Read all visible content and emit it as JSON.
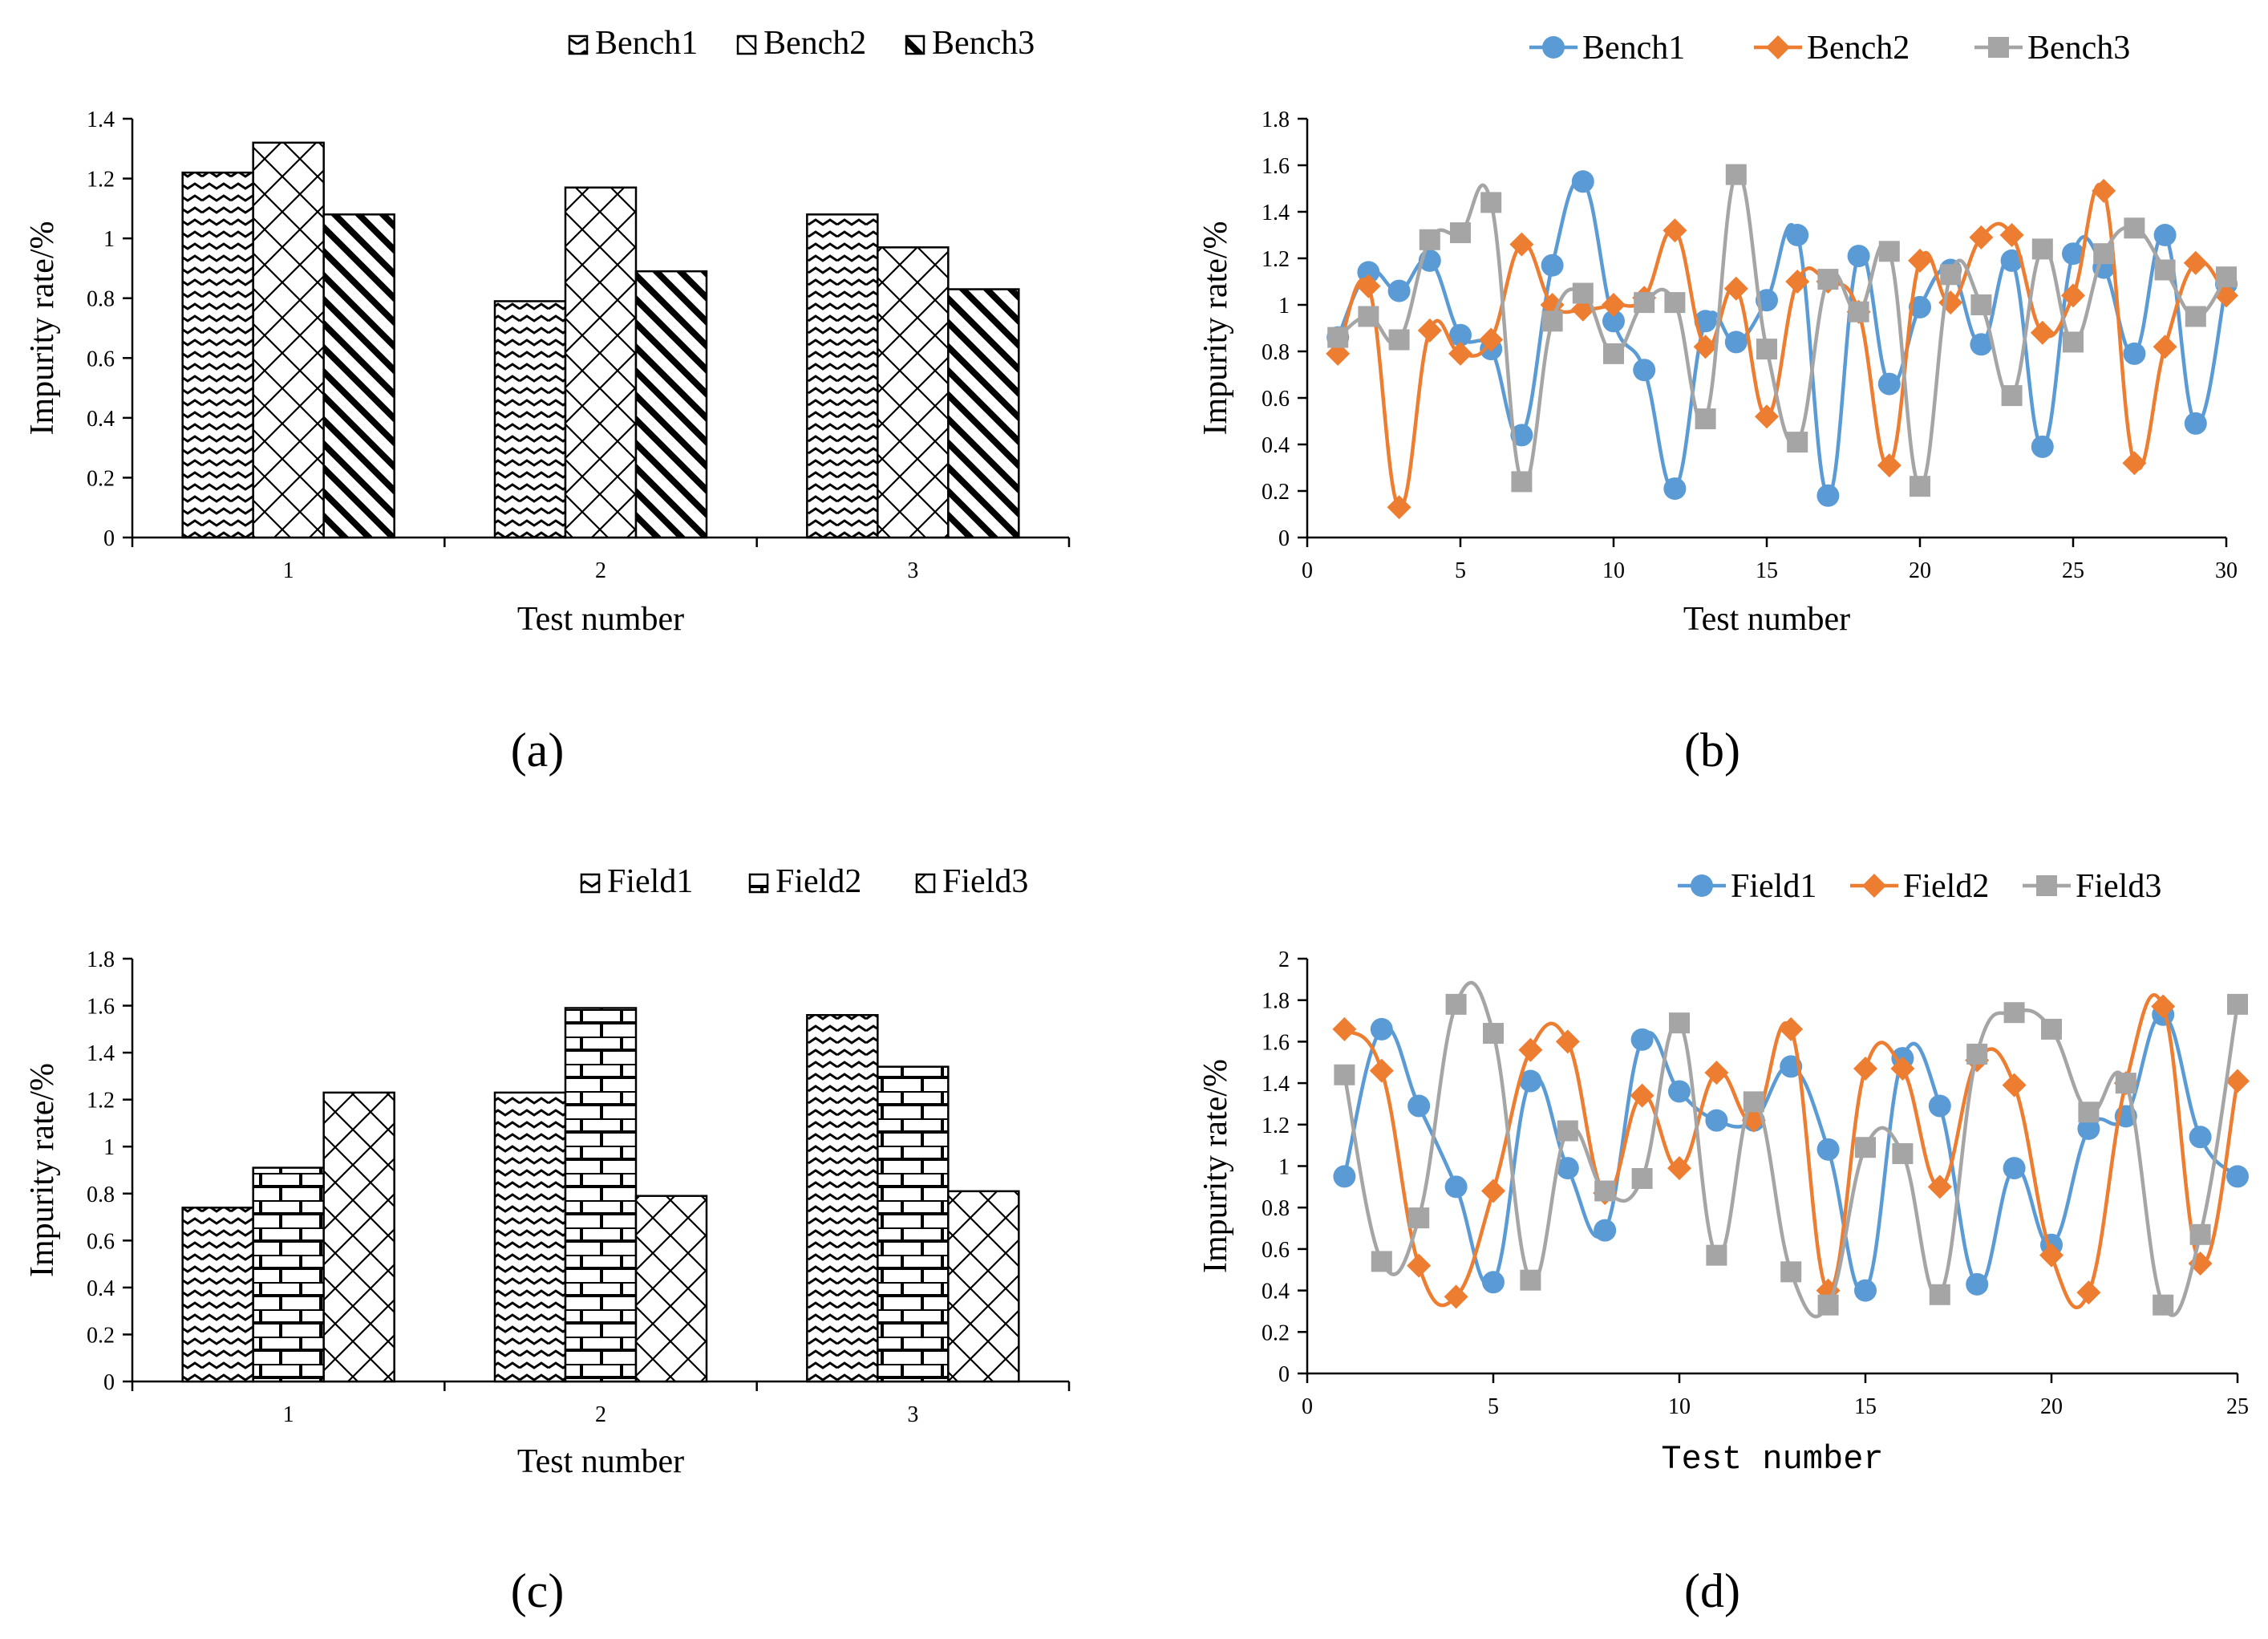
{
  "chart_data": [
    {
      "id": "a",
      "type": "bar",
      "caption": "(a)",
      "categories": [
        "1",
        "2",
        "3"
      ],
      "series": [
        {
          "name": "Bench1",
          "values": [
            1.22,
            0.79,
            1.08
          ]
        },
        {
          "name": "Bench2",
          "values": [
            1.32,
            1.17,
            0.97
          ]
        },
        {
          "name": "Bench3",
          "values": [
            1.08,
            0.89,
            0.83
          ]
        }
      ],
      "xlabel": "Test number",
      "ylabel": "Impurity rate/%",
      "ylim": [
        0,
        1.4
      ],
      "yticks": [
        "0",
        "0.2",
        "0.4",
        "0.6",
        "0.8",
        "1",
        "1.2",
        "1.4"
      ],
      "legend": "top-center",
      "grid": false
    },
    {
      "id": "b",
      "type": "line",
      "caption": "(b)",
      "x": [
        1,
        2,
        3,
        4,
        5,
        6,
        7,
        8,
        9,
        10,
        11,
        12,
        13,
        14,
        15,
        16,
        17,
        18,
        19,
        20,
        21,
        22,
        23,
        24,
        25,
        26,
        27,
        28,
        29,
        30
      ],
      "series": [
        {
          "name": "Bench1",
          "color": "#5B9BD5",
          "marker": "circle",
          "values": [
            0.86,
            1.14,
            1.06,
            1.19,
            0.87,
            0.81,
            0.44,
            1.17,
            1.53,
            0.93,
            0.72,
            0.21,
            0.93,
            0.84,
            1.02,
            1.3,
            0.18,
            1.21,
            0.66,
            0.99,
            1.15,
            0.83,
            1.19,
            0.39,
            1.22,
            1.16,
            0.79,
            1.3,
            0.49,
            1.09
          ]
        },
        {
          "name": "Bench2",
          "color": "#ED7D31",
          "marker": "diamond",
          "values": [
            0.79,
            1.08,
            0.13,
            0.89,
            0.79,
            0.85,
            1.26,
            1.0,
            0.98,
            1.0,
            1.03,
            1.32,
            0.82,
            1.07,
            0.52,
            1.1,
            1.1,
            0.97,
            0.31,
            1.19,
            1.01,
            1.29,
            1.3,
            0.88,
            1.04,
            1.49,
            0.32,
            0.82,
            1.18,
            1.04
          ]
        },
        {
          "name": "Bench3",
          "color": "#A5A5A5",
          "marker": "square",
          "values": [
            0.86,
            0.95,
            0.85,
            1.28,
            1.31,
            1.44,
            0.24,
            0.93,
            1.05,
            0.79,
            1.01,
            1.01,
            0.51,
            1.56,
            0.81,
            0.41,
            1.11,
            0.97,
            1.23,
            0.22,
            1.13,
            1.0,
            0.61,
            1.24,
            0.84,
            1.22,
            1.33,
            1.15,
            0.95,
            1.12
          ]
        }
      ],
      "xlabel": "Test number",
      "ylabel": "Impurity rate/%",
      "xlim": [
        0,
        30
      ],
      "ylim": [
        0,
        1.8
      ],
      "xticks": [
        "0",
        "5",
        "10",
        "15",
        "20",
        "25",
        "30"
      ],
      "yticks": [
        "0",
        "0.2",
        "0.4",
        "0.6",
        "0.8",
        "1",
        "1.2",
        "1.4",
        "1.6",
        "1.8"
      ],
      "legend": "top-right",
      "grid": false
    },
    {
      "id": "c",
      "type": "bar",
      "caption": "(c)",
      "categories": [
        "1",
        "2",
        "3"
      ],
      "series": [
        {
          "name": "Field1",
          "values": [
            0.74,
            1.23,
            1.56
          ]
        },
        {
          "name": "Field2",
          "values": [
            0.91,
            1.59,
            1.34
          ]
        },
        {
          "name": "Field3",
          "values": [
            1.23,
            0.79,
            0.81
          ]
        }
      ],
      "xlabel": "Test number",
      "ylabel": "Impurity rate/%",
      "ylim": [
        0,
        1.8
      ],
      "yticks": [
        "0",
        "0.2",
        "0.4",
        "0.6",
        "0.8",
        "1",
        "1.2",
        "1.4",
        "1.6",
        "1.8"
      ],
      "legend": "top-center",
      "grid": false
    },
    {
      "id": "d",
      "type": "line",
      "caption": "(d)",
      "x": [
        1,
        2,
        3,
        4,
        5,
        6,
        7,
        8,
        9,
        10,
        11,
        12,
        13,
        14,
        15,
        16,
        17,
        18,
        19,
        20,
        21,
        22,
        23,
        24,
        25
      ],
      "series": [
        {
          "name": "Field1",
          "color": "#5B9BD5",
          "marker": "circle",
          "values": [
            0.95,
            1.66,
            1.29,
            0.9,
            0.44,
            1.41,
            0.99,
            0.69,
            1.61,
            1.36,
            1.22,
            1.22,
            1.48,
            1.08,
            0.4,
            1.52,
            1.29,
            0.43,
            0.99,
            0.62,
            1.18,
            1.24,
            1.73,
            1.14,
            0.95
          ]
        },
        {
          "name": "Field2",
          "color": "#ED7D31",
          "marker": "diamond",
          "values": [
            1.66,
            1.46,
            0.52,
            0.37,
            0.88,
            1.56,
            1.6,
            0.87,
            1.34,
            0.99,
            1.45,
            1.22,
            1.66,
            0.4,
            1.47,
            1.47,
            0.9,
            1.51,
            1.39,
            0.57,
            0.39,
            1.4,
            1.77,
            0.53,
            1.41
          ]
        },
        {
          "name": "Field3",
          "color": "#A5A5A5",
          "marker": "square",
          "values": [
            1.44,
            0.54,
            0.75,
            1.78,
            1.64,
            0.45,
            1.17,
            0.88,
            0.94,
            1.69,
            0.57,
            1.31,
            0.49,
            0.33,
            1.09,
            1.06,
            0.38,
            1.54,
            1.74,
            1.66,
            1.26,
            1.4,
            0.33,
            0.67,
            1.78
          ]
        }
      ],
      "xlabel": "Test number",
      "ylabel": "Impurity rate/%",
      "xlim": [
        0,
        25
      ],
      "ylim": [
        0,
        2
      ],
      "xticks": [
        "0",
        "5",
        "10",
        "15",
        "20",
        "25"
      ],
      "yticks": [
        "0",
        "0.2",
        "0.4",
        "0.6",
        "0.8",
        "1",
        "1.2",
        "1.4",
        "1.6",
        "1.8",
        "2"
      ],
      "legend": "top-right",
      "grid": false
    }
  ]
}
